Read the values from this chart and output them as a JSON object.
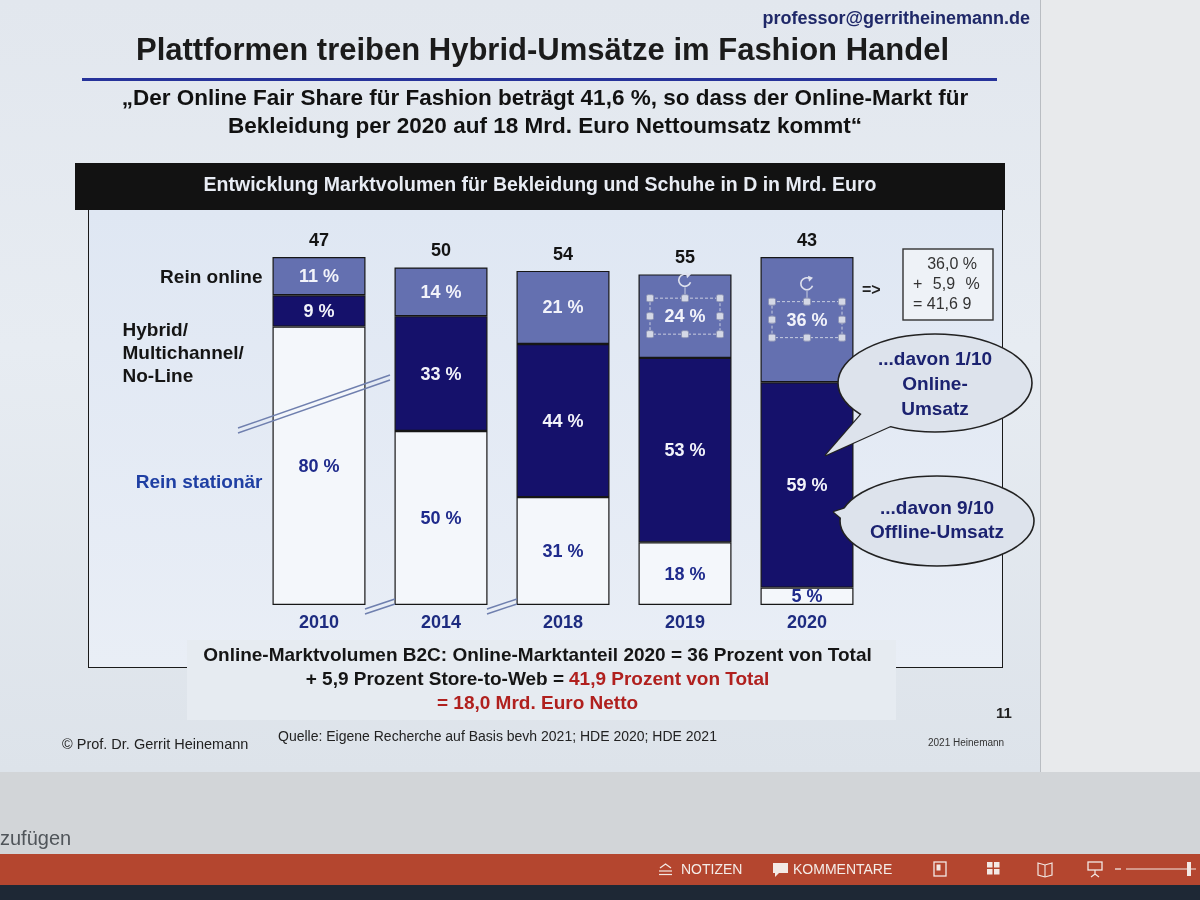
{
  "chart_data": {
    "type": "bar",
    "title": "Plattformen treiben Hybrid-Umsätze im Fashion Handel",
    "subtitle": "„Der Online Fair Share für Fashion beträgt 41,6 %, so dass der Online-Markt für Bekleidung per 2020 auf 18 Mrd. Euro Nettoumsatz kommt“",
    "categories": [
      "2010",
      "2014",
      "2018",
      "2019",
      "2020"
    ],
    "stacked": true,
    "series": [
      {
        "name": "Rein stationär",
        "color": "#f4f7fb",
        "values": [
          80,
          50,
          31,
          18,
          5
        ],
        "value_labels": [
          "80 %",
          "50 %",
          "31 %",
          "18 %",
          "5 %"
        ]
      },
      {
        "name": "Hybrid/ Multichannel/ No-Line",
        "color": "#15116b",
        "values": [
          9,
          33,
          44,
          53,
          59
        ],
        "value_labels": [
          "9 %",
          "33 %",
          "44 %",
          "53 %",
          "59 %"
        ]
      },
      {
        "name": "Rein online",
        "color": "#6470b0",
        "values": [
          11,
          14,
          21,
          24,
          36
        ],
        "value_labels": [
          "11 %",
          "14 %",
          "21 %",
          "24 %",
          "36 %"
        ]
      }
    ],
    "ylim": [
      0,
      100
    ],
    "tick_labels": "x",
    "annotations": [
      "professor@gerritheinemann.de",
      "Entwicklung Marktvolumen für Bekleidung und Schuhe in D in Mrd. Euro",
      {
        "text": "47",
        "x": "2010",
        "y": 100
      },
      {
        "text": "50",
        "x": "2014",
        "y": 97
      },
      {
        "text": "54",
        "x": "2018",
        "y": 96
      },
      {
        "text": "55",
        "x": "2019",
        "y": 95
      },
      {
        "text": "43",
        "x": "2020",
        "y": 100
      },
      "=>",
      "36,0 %",
      "+ 5,9 %",
      "= 41,6 9",
      "...davon 1/10 Online-Umsatz",
      "...davon 9/10 Offline-Umsatz",
      "Online-Marktvolumen B2C: Online-Marktanteil 2020 = 36 Prozent von Total",
      "+ 5,9 Prozent Store-to-Web =",
      "41,9 Prozent von Total",
      "= 18,0 Mrd. Euro Netto",
      "11",
      "© Prof. Dr. Gerrit Heinemann",
      "Quelle: Eigene Recherche auf Basis bevh 2021; HDE 2020; HDE 2021",
      "2021 Heinemann",
      "zufügen",
      "NOTIZEN",
      "KOMMENTARE"
    ]
  }
}
